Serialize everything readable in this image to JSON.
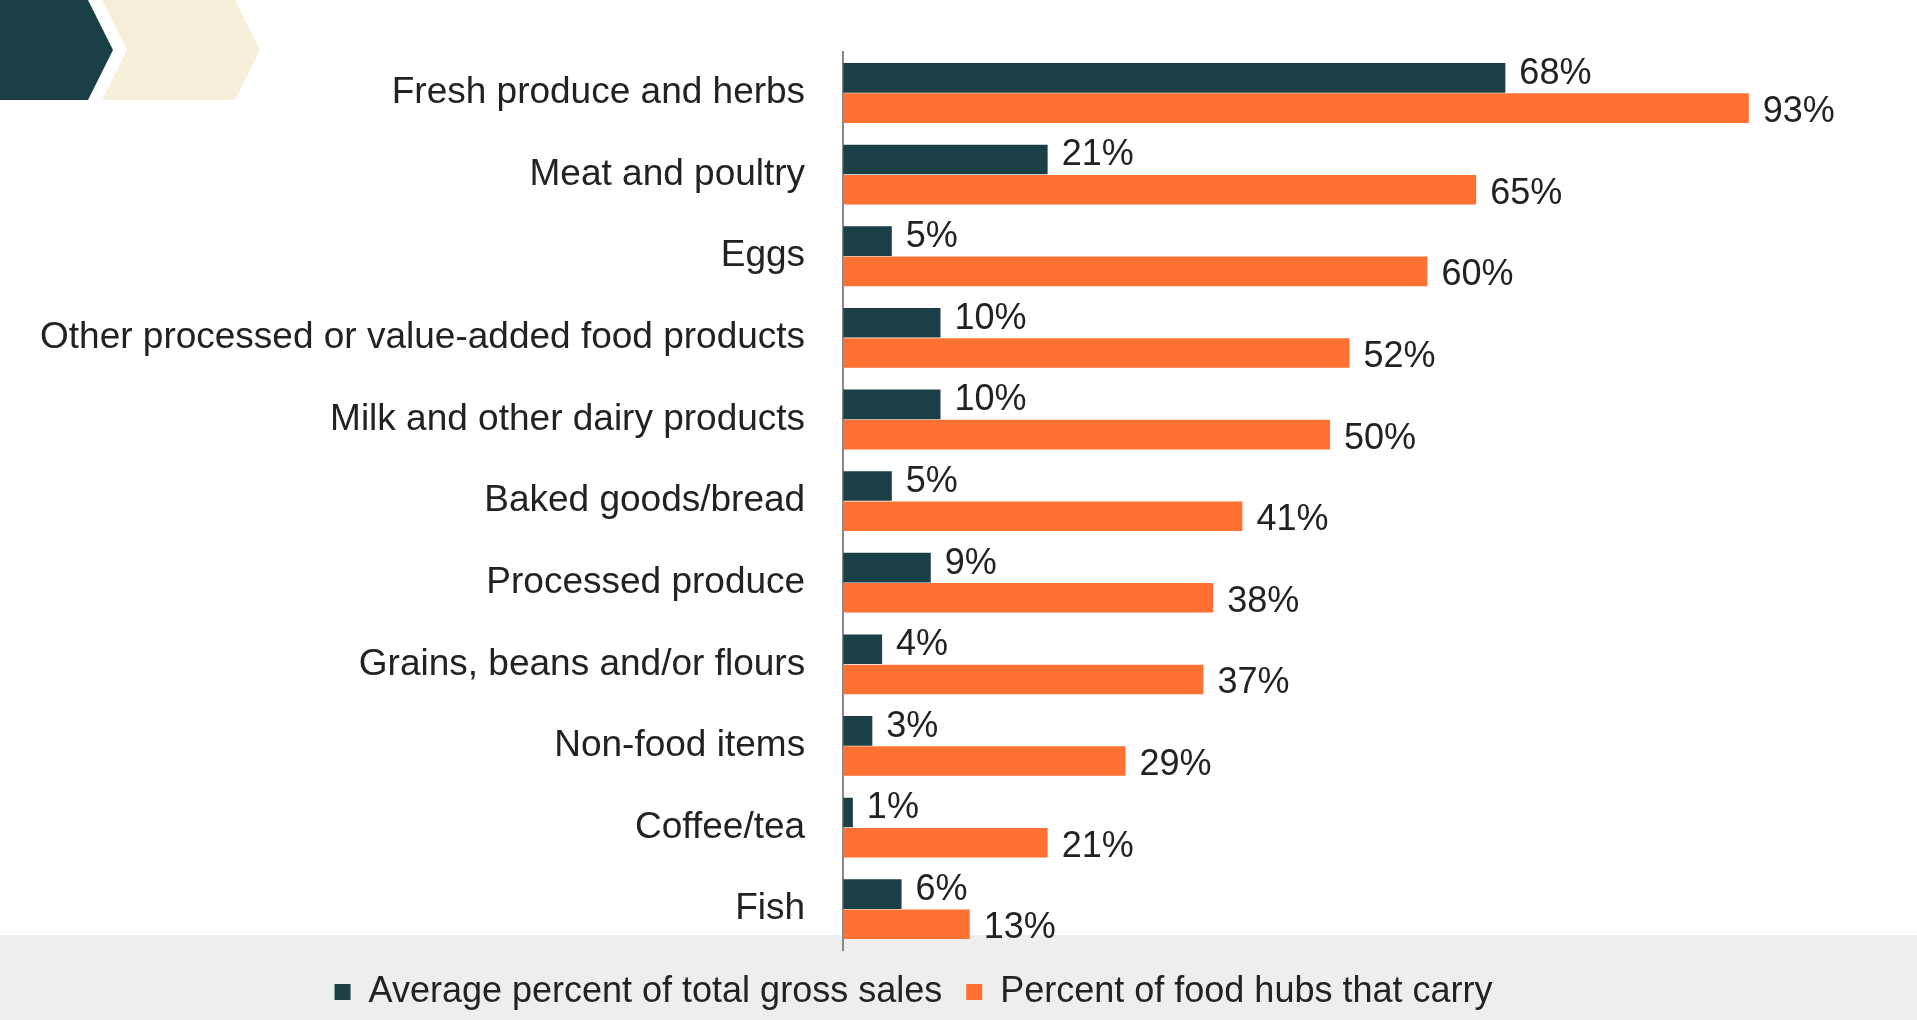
{
  "chart_data": {
    "type": "bar",
    "orientation": "horizontal",
    "categories": [
      "Fresh produce and herbs",
      "Meat and poultry",
      "Eggs",
      "Other processed or value-added food products",
      "Milk and other dairy products",
      "Baked goods/bread",
      "Processed produce",
      "Grains, beans and/or flours",
      "Non-food items",
      "Coffee/tea",
      "Fish"
    ],
    "series": [
      {
        "name": "Average percent of total gross sales",
        "color": "#1b3f47",
        "values": [
          68,
          21,
          5,
          10,
          10,
          5,
          9,
          4,
          3,
          1,
          6
        ],
        "value_labels": [
          "68%",
          "21%",
          "5%",
          "10%",
          "10%",
          "5%",
          "9%",
          "4%",
          "3%",
          "1%",
          "6%"
        ]
      },
      {
        "name": "Percent of food hubs that carry",
        "color": "#ff7033",
        "values": [
          93,
          65,
          60,
          52,
          50,
          41,
          38,
          37,
          29,
          21,
          13
        ],
        "value_labels": [
          "93%",
          "65%",
          "60%",
          "52%",
          "50%",
          "41%",
          "38%",
          "37%",
          "29%",
          "21%",
          "13%"
        ]
      }
    ],
    "tick_labels": "y",
    "legend": "bottom"
  }
}
